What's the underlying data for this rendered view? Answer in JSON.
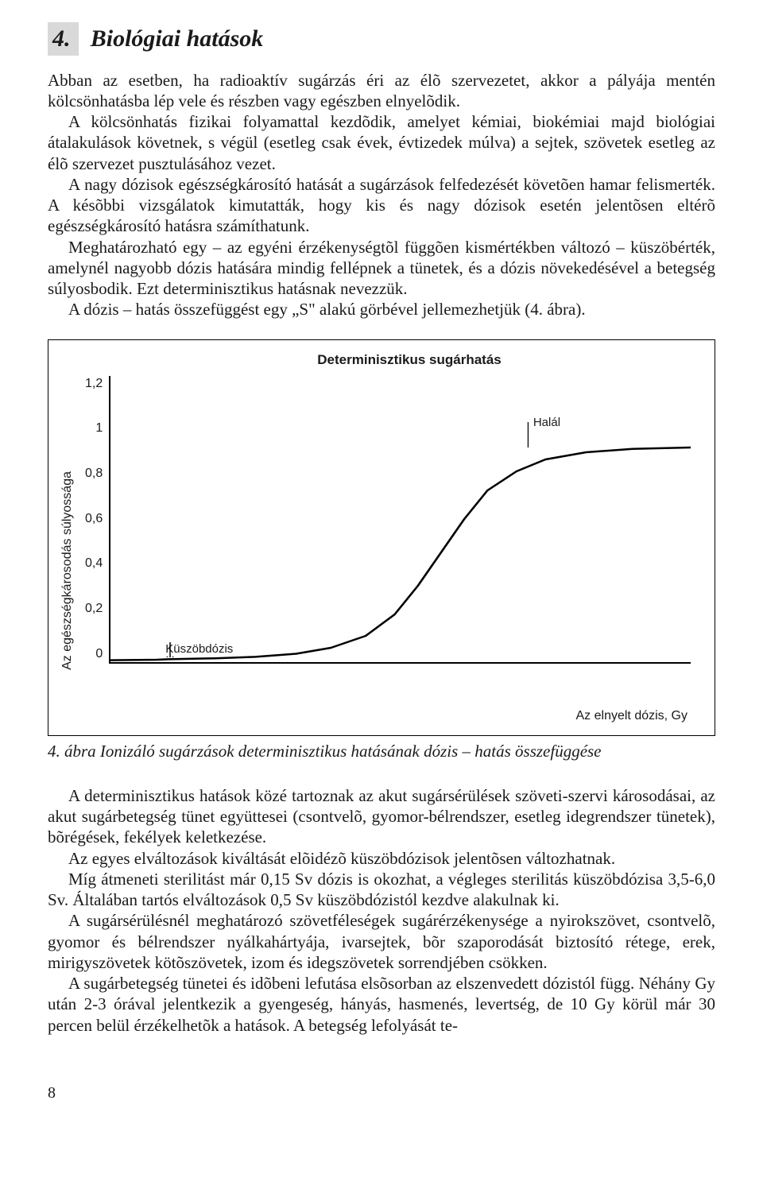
{
  "section": {
    "number": "4.",
    "title": "Biológiai hatások"
  },
  "paragraphs_top": {
    "p1": "Abban az esetben, ha radioaktív sugárzás éri az élõ szervezetet, akkor a pályája mentén kölcsönhatásba lép vele és részben vagy egészben elnyelõdik.",
    "p2": "A kölcsönhatás fizikai folyamattal kezdõdik, amelyet kémiai, biokémiai majd biológiai átalakulások követnek, s végül (esetleg csak évek, évtizedek múlva) a sejtek, szövetek esetleg az élõ szervezet pusztulásához vezet.",
    "p3": "A nagy dózisok egészségkárosító hatását a sugárzások felfedezését követõen hamar felismerték. A késõbbi vizsgálatok kimutatták, hogy kis és nagy dózisok esetén jelentõsen eltérõ egészségkárosító hatásra számíthatunk.",
    "p4": "Meghatározható egy – az egyéni érzékenységtõl függõen kismértékben változó – küszöbérték, amelynél nagyobb dózis hatására mindig fellépnek a tünetek, és a dózis növekedésével a betegség súlyosbodik. Ezt determinisztikus hatásnak nevezzük.",
    "p5": "A dózis – hatás összefüggést egy „S\" alakú görbével jellemezhetjük (4. ábra)."
  },
  "chart": {
    "type": "line",
    "title": "Determinisztikus sugárhatás",
    "ylabel": "Az egészségkárosodás súlyossága",
    "xlabel": "Az elnyelt dózis, Gy",
    "ylim": [
      0,
      1.2
    ],
    "yticks": [
      "1,2",
      "1",
      "0,8",
      "0,6",
      "0,4",
      "0,2",
      "0"
    ],
    "annotations": {
      "halal": "Halál",
      "kuszob": "Küszöbdózis"
    },
    "line_color": "#000000",
    "line_width": 2.5,
    "background_color": "#ffffff",
    "axis_color": "#000000",
    "font_family": "Arial",
    "title_fontsize": 17,
    "label_fontsize": 16,
    "annot_fontsize": 15,
    "curve_points": [
      [
        0.0,
        0.008
      ],
      [
        0.08,
        0.01
      ],
      [
        0.1,
        0.012
      ],
      [
        0.18,
        0.016
      ],
      [
        0.25,
        0.022
      ],
      [
        0.32,
        0.035
      ],
      [
        0.38,
        0.06
      ],
      [
        0.44,
        0.11
      ],
      [
        0.49,
        0.2
      ],
      [
        0.53,
        0.32
      ],
      [
        0.57,
        0.46
      ],
      [
        0.61,
        0.6
      ],
      [
        0.65,
        0.72
      ],
      [
        0.7,
        0.8
      ],
      [
        0.75,
        0.85
      ],
      [
        0.82,
        0.88
      ],
      [
        0.9,
        0.894
      ],
      [
        1.0,
        0.9
      ]
    ],
    "threshold_x": 0.1,
    "halal_x": 0.72,
    "halal_y": 0.9
  },
  "figure_caption": "4. ábra Ionizáló sugárzások determinisztikus hatásának dózis – hatás összefüggése",
  "paragraphs_bottom": {
    "p1": "A determinisztikus hatások közé tartoznak az akut sugársérülések szöveti-szervi károsodásai, az akut sugárbetegség tünet együttesei (csontvelõ, gyomor-bélrendszer, esetleg idegrendszer tünetek), bõrégések, fekélyek keletkezése.",
    "p2": "Az egyes elváltozások kiváltását elõidézõ küszöbdózisok jelentõsen változhatnak.",
    "p3": "Míg átmeneti sterilitást már 0,15 Sv dózis is okozhat, a végleges sterilitás küszöbdózisa 3,5-6,0 Sv. Általában tartós elváltozások 0,5 Sv küszöbdózistól kezdve alakulnak ki.",
    "p4": "A sugársérülésnél meghatározó szövetféleségek sugárérzékenysége a nyirokszövet, csontvelõ, gyomor és bélrendszer nyálkahártyája, ivarsejtek, bõr szaporodását biztosító rétege, erek, mirigyszövetek kötõszövetek, izom és idegszövetek sorrendjében csökken.",
    "p5": "A sugárbetegség tünetei és idõbeni lefutása elsõsorban az elszenvedett dózistól függ. Néhány Gy után 2-3 órával jelentkezik a gyengeség, hányás, hasmenés, levertség, de 10 Gy körül már 30 percen belül érzékelhetõk a hatások. A betegség lefolyását te-"
  },
  "page_number": "8"
}
